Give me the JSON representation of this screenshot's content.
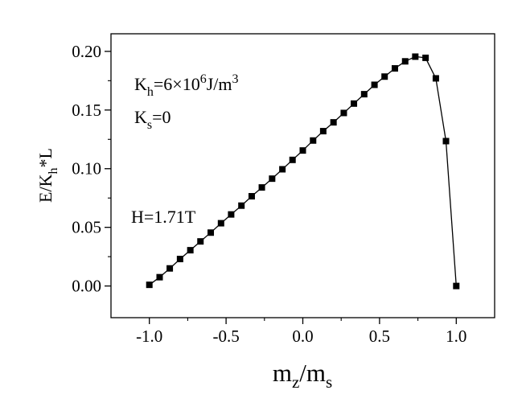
{
  "chart_data": {
    "type": "line",
    "title": "",
    "xlabel": {
      "base": "m",
      "sub1": "z",
      "sep": "/m",
      "sub2": "s"
    },
    "ylabel": {
      "prefix": "E/K",
      "sub": "h",
      "suffix": "*L"
    },
    "xlim": [
      -1.25,
      1.25
    ],
    "ylim": [
      -0.027,
      0.215
    ],
    "x_ticks": [
      -1.0,
      -0.5,
      0.0,
      0.5,
      1.0
    ],
    "x_tick_labels": [
      "-1.0",
      "-0.5",
      "0.0",
      "0.5",
      "1.0"
    ],
    "y_ticks": [
      0.0,
      0.05,
      0.1,
      0.15,
      0.2
    ],
    "y_tick_labels": [
      "0.00",
      "0.05",
      "0.10",
      "0.15",
      "0.20"
    ],
    "grid": false,
    "legend": "none",
    "marker": "square",
    "line_color": "#000000",
    "annotations": {
      "kh": {
        "prefix": "K",
        "sub": "h",
        "mid": "=6×10",
        "sup": "6",
        "unit": "J/m",
        "sup2": "3"
      },
      "ks": {
        "prefix": "K",
        "sub": "s",
        "suffix": "=0"
      },
      "field": "H=1.71T"
    },
    "series": [
      {
        "x": [
          -1.0,
          -0.933,
          -0.867,
          -0.8,
          -0.733,
          -0.667,
          -0.6,
          -0.533,
          -0.467,
          -0.4,
          -0.333,
          -0.267,
          -0.2,
          -0.133,
          -0.067,
          0.0,
          0.067,
          0.133,
          0.2,
          0.267,
          0.333,
          0.4,
          0.467,
          0.533,
          0.6,
          0.667,
          0.733,
          0.8,
          0.867,
          0.933,
          1.0
        ],
        "y": [
          0.001,
          0.0075,
          0.015,
          0.023,
          0.0305,
          0.038,
          0.0455,
          0.0535,
          0.061,
          0.0685,
          0.0765,
          0.084,
          0.0915,
          0.0995,
          0.1075,
          0.1155,
          0.124,
          0.132,
          0.1395,
          0.1475,
          0.1555,
          0.1635,
          0.1715,
          0.1785,
          0.1855,
          0.1915,
          0.1955,
          0.1945,
          0.177,
          0.1235,
          0.0
        ]
      }
    ]
  }
}
